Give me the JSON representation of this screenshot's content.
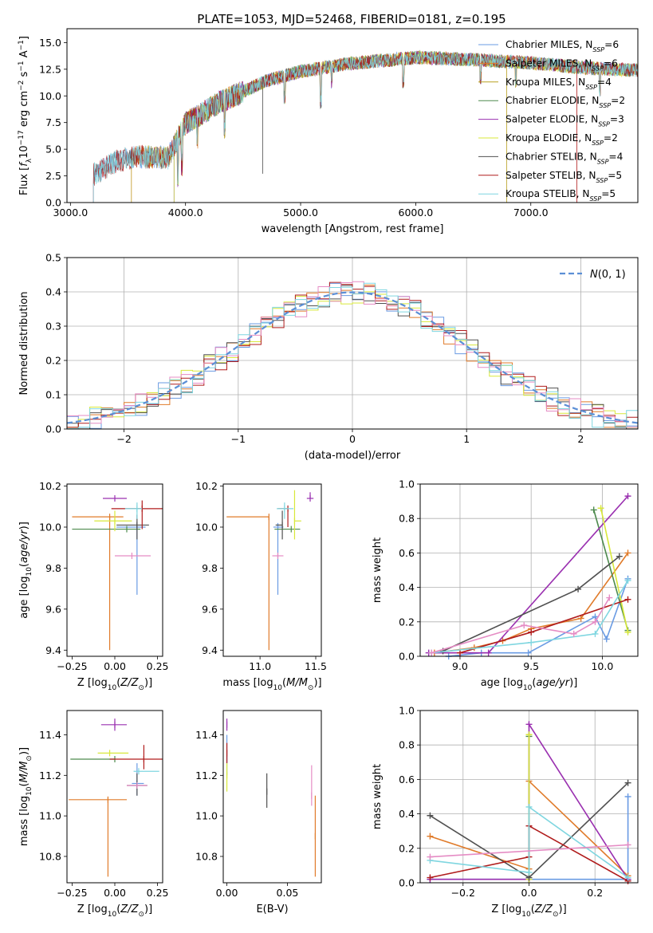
{
  "figure": {
    "title": "PLATE=1053, MJD=52468, FIBERID=0181, z=0.195"
  },
  "chart_data": [
    {
      "id": "spectrum",
      "type": "line",
      "title": "PLATE=1053, MJD=52468, FIBERID=0181, z=0.195",
      "xlabel": "wavelength [Angstrom, rest frame]",
      "ylabel": "Flux [f_λ 10^-17 erg cm^-2 s^-1 A^-1]",
      "xlim": [
        2970,
        7930
      ],
      "ylim": [
        0,
        16.3
      ],
      "xticks": [
        3000,
        4000,
        5000,
        6000,
        7000
      ],
      "yticks": [
        0.0,
        2.5,
        5.0,
        7.5,
        10.0,
        12.5,
        15.0
      ],
      "legend_position": "upper-right",
      "grid": false,
      "continuum": [
        [
          3200,
          2.6
        ],
        [
          3400,
          3.9
        ],
        [
          3600,
          4.3
        ],
        [
          3850,
          4.2
        ],
        [
          4000,
          7.4
        ],
        [
          4300,
          9.4
        ],
        [
          4700,
          11.4
        ],
        [
          5000,
          12.3
        ],
        [
          5400,
          13.0
        ],
        [
          6000,
          13.6
        ],
        [
          6500,
          13.4
        ],
        [
          7000,
          13.1
        ],
        [
          7500,
          12.6
        ],
        [
          7930,
          12.4
        ]
      ],
      "series": [
        {
          "name": "Chabrier MILES, N_SSP=6",
          "color": "#6a9be3",
          "start": 3200
        },
        {
          "name": "Salpeter MILES, N_SSP=6",
          "color": "#e07b2a",
          "start": 3530
        },
        {
          "name": "Kroupa MILES, N_SSP=4",
          "color": "#b8a020",
          "start": 3530
        },
        {
          "name": "Chabrier ELODIE, N_SSP=2",
          "color": "#4d8a4d",
          "start": 3900
        },
        {
          "name": "Salpeter ELODIE, N_SSP=3",
          "color": "#9a30b0",
          "start": 3900
        },
        {
          "name": "Kroupa ELODIE, N_SSP=2",
          "color": "#d8e83a",
          "start": 3900
        },
        {
          "name": "Chabrier STELIB, N_SSP=4",
          "color": "#505050",
          "start": 3200
        },
        {
          "name": "Salpeter STELIB, N_SSP=5",
          "color": "#b01c1c",
          "start": 3200
        },
        {
          "name": "Kroupa STELIB, N_SSP=5",
          "color": "#7fd6e0",
          "start": 3200
        }
      ]
    },
    {
      "id": "residuals",
      "type": "line",
      "xlabel": "(data-model)/error",
      "ylabel": "Normed distribution",
      "xlim": [
        -2.5,
        2.5
      ],
      "ylim": [
        0,
        0.5
      ],
      "xticks": [
        -2,
        -1,
        0,
        1,
        2
      ],
      "yticks": [
        0.0,
        0.1,
        0.2,
        0.3,
        0.4,
        0.5
      ],
      "grid": true,
      "legend": "N(0, 1)",
      "legend_position": "upper-right",
      "bin_width": 0.1
    },
    {
      "id": "age_vs_Z",
      "type": "scatter",
      "xlabel": "Z [log10(Z/Z⊙)]",
      "ylabel": "age  [log10(age/yr)]",
      "xlim": [
        -0.28,
        0.28
      ],
      "ylim": [
        9.37,
        10.21
      ],
      "xticks": [
        -0.25,
        0.0,
        0.25
      ],
      "yticks": [
        9.4,
        9.6,
        9.8,
        10.0,
        10.2
      ],
      "points": [
        {
          "x": 0.13,
          "y": 10.0,
          "xerr": [
            0.12,
            0.05
          ],
          "yerr": [
            0.33,
            0.02
          ],
          "color": "#6a9be3"
        },
        {
          "x": -0.03,
          "y": 10.05,
          "xerr": [
            0.22,
            0.08
          ],
          "yerr": [
            0.65,
            0.0
          ],
          "color": "#e07b2a"
        },
        {
          "x": 0.07,
          "y": 9.99,
          "xerr": [
            0.32,
            0.08
          ],
          "yerr": [
            0.0,
            0.0
          ],
          "color": "#4d8a4d"
        },
        {
          "x": 0.0,
          "y": 10.14,
          "xerr": [
            0.07,
            0.07
          ],
          "yerr": [
            0.0,
            0.0
          ],
          "color": "#9a30b0"
        },
        {
          "x": 0.0,
          "y": 10.03,
          "xerr": [
            0.12,
            0.1
          ],
          "yerr": [
            0.05,
            0.05
          ],
          "color": "#d8e83a"
        },
        {
          "x": 0.13,
          "y": 10.01,
          "xerr": [
            0.12,
            0.07
          ],
          "yerr": [
            0.07,
            0.05
          ],
          "color": "#505050"
        },
        {
          "x": 0.16,
          "y": 10.09,
          "xerr": [
            0.18,
            0.12
          ],
          "yerr": [
            0.1,
            0.04
          ],
          "color": "#b01c1c"
        },
        {
          "x": 0.13,
          "y": 10.09,
          "xerr": [
            0.07,
            0.03
          ],
          "yerr": [
            0.05,
            0.03
          ],
          "color": "#7fd6e0"
        },
        {
          "x": 0.1,
          "y": 9.86,
          "xerr": [
            0.1,
            0.11
          ],
          "yerr": [
            0.0,
            0.0
          ],
          "color": "#e58cc4"
        }
      ]
    },
    {
      "id": "age_vs_mass",
      "type": "scatter",
      "xlabel": "mass [log10(M/M⊙)]",
      "ylabel": "",
      "xlim": [
        10.67,
        11.55
      ],
      "ylim": [
        9.37,
        10.21
      ],
      "xticks": [
        11.0,
        11.5
      ],
      "yticks": [
        9.4,
        9.6,
        9.8,
        10.0,
        10.2
      ],
      "points": [
        {
          "x": 11.16,
          "y": 10.0,
          "xerr": [
            0.04,
            0.05
          ],
          "yerr": [
            0.33,
            0.02
          ],
          "color": "#6a9be3"
        },
        {
          "x": 11.08,
          "y": 10.05,
          "xerr": [
            0.38,
            0.0
          ],
          "yerr": [
            0.65,
            0.0
          ],
          "color": "#e07b2a"
        },
        {
          "x": 11.28,
          "y": 9.99,
          "xerr": [
            0.15,
            0.08
          ],
          "yerr": [
            0.0,
            0.0
          ],
          "color": "#4d8a4d"
        },
        {
          "x": 11.45,
          "y": 10.14,
          "xerr": [
            0.03,
            0.03
          ],
          "yerr": [
            0.0,
            0.03
          ],
          "color": "#9a30b0"
        },
        {
          "x": 11.31,
          "y": 10.03,
          "xerr": [
            0.0,
            0.06
          ],
          "yerr": [
            0.09,
            0.15
          ],
          "color": "#d8e83a"
        },
        {
          "x": 11.2,
          "y": 10.01,
          "xerr": [
            0.06,
            0.0
          ],
          "yerr": [
            0.07,
            0.07
          ],
          "color": "#505050"
        },
        {
          "x": 11.25,
          "y": 10.09,
          "xerr": [
            0.09,
            0.0
          ],
          "yerr": [
            0.09,
            0.0
          ],
          "color": "#b01c1c"
        },
        {
          "x": 11.22,
          "y": 10.09,
          "xerr": [
            0.07,
            0.08
          ],
          "yerr": [
            0.05,
            0.03
          ],
          "color": "#7fd6e0"
        },
        {
          "x": 11.16,
          "y": 9.86,
          "xerr": [
            0.05,
            0.05
          ],
          "yerr": [
            0.0,
            0.0
          ],
          "color": "#e58cc4"
        }
      ]
    },
    {
      "id": "mass_weight_vs_age",
      "type": "line",
      "xlabel": "age  [log10(age/yr)]",
      "ylabel": "mass weight",
      "xlim": [
        8.72,
        10.25
      ],
      "ylim": [
        0.0,
        1.0
      ],
      "xticks": [
        9.0,
        9.5,
        10.0
      ],
      "yticks": [
        0.0,
        0.2,
        0.4,
        0.6,
        0.8,
        1.0
      ],
      "grid": true,
      "series": [
        {
          "color": "#6a9be3",
          "x": [
            8.92,
            9.15,
            9.48,
            9.95,
            10.03,
            10.18
          ],
          "y": [
            0.0,
            0.02,
            0.02,
            0.23,
            0.1,
            0.45
          ]
        },
        {
          "color": "#e07b2a",
          "x": [
            8.82,
            9.1,
            9.3,
            9.5,
            9.85,
            10.18
          ],
          "y": [
            0.02,
            0.05,
            0.09,
            0.16,
            0.22,
            0.6
          ]
        },
        {
          "color": "#4d8a4d",
          "x": [
            9.94,
            10.18
          ],
          "y": [
            0.85,
            0.15
          ]
        },
        {
          "color": "#9a30b0",
          "x": [
            8.78,
            9.2,
            10.18
          ],
          "y": [
            0.02,
            0.02,
            0.93
          ]
        },
        {
          "color": "#d8e83a",
          "x": [
            9.99,
            10.18
          ],
          "y": [
            0.86,
            0.14
          ]
        },
        {
          "color": "#505050",
          "x": [
            8.88,
            9.83,
            10.12
          ],
          "y": [
            0.03,
            0.39,
            0.58
          ]
        },
        {
          "color": "#b01c1c",
          "x": [
            9.0,
            9.5,
            10.18
          ],
          "y": [
            0.02,
            0.14,
            0.33
          ]
        },
        {
          "color": "#7fd6e0",
          "x": [
            8.8,
            9.5,
            9.95,
            10.18
          ],
          "y": [
            0.02,
            0.08,
            0.13,
            0.44
          ]
        },
        {
          "color": "#e58cc4",
          "x": [
            8.8,
            9.45,
            9.8,
            9.95,
            10.05
          ],
          "y": [
            0.02,
            0.18,
            0.13,
            0.2,
            0.34
          ]
        }
      ]
    },
    {
      "id": "mass_vs_Z",
      "type": "scatter",
      "xlabel": "Z [log10(Z/Z⊙)]",
      "ylabel": "mass [log10(M/M⊙)]",
      "xlim": [
        -0.28,
        0.28
      ],
      "ylim": [
        10.67,
        11.52
      ],
      "xticks": [
        -0.25,
        0.0,
        0.25
      ],
      "yticks": [
        10.8,
        11.0,
        11.2,
        11.4
      ],
      "points": [
        {
          "x": 0.13,
          "y": 11.16,
          "xerr": [
            0.03,
            0.04
          ],
          "yerr": [
            0.06,
            0.1
          ],
          "color": "#6a9be3"
        },
        {
          "x": -0.04,
          "y": 11.08,
          "xerr": [
            0.23,
            0.11
          ],
          "yerr": [
            0.38,
            0.01
          ],
          "color": "#e07b2a"
        },
        {
          "x": 0.0,
          "y": 11.28,
          "xerr": [
            0.26,
            0.0
          ],
          "yerr": [
            0.0,
            0.0
          ],
          "color": "#4d8a4d"
        },
        {
          "x": 0.0,
          "y": 11.45,
          "xerr": [
            0.08,
            0.07
          ],
          "yerr": [
            0.03,
            0.03
          ],
          "color": "#9a30b0"
        },
        {
          "x": -0.03,
          "y": 11.31,
          "xerr": [
            0.07,
            0.11
          ],
          "yerr": [
            0.0,
            0.0
          ],
          "color": "#d8e83a"
        },
        {
          "x": 0.13,
          "y": 11.15,
          "xerr": [
            0.06,
            0.06
          ],
          "yerr": [
            0.05,
            0.06
          ],
          "color": "#505050"
        },
        {
          "x": 0.17,
          "y": 11.28,
          "xerr": [
            0.2,
            0.12
          ],
          "yerr": [
            0.05,
            0.07
          ],
          "color": "#b01c1c"
        },
        {
          "x": 0.14,
          "y": 11.22,
          "xerr": [
            0.03,
            0.12
          ],
          "yerr": [
            0.0,
            0.0
          ],
          "color": "#7fd6e0"
        },
        {
          "x": 0.13,
          "y": 11.15,
          "xerr": [
            0.06,
            0.06
          ],
          "yerr": [
            0.0,
            0.0
          ],
          "color": "#e58cc4"
        }
      ]
    },
    {
      "id": "mass_vs_EBV",
      "type": "scatter",
      "xlabel": "E(B-V)",
      "ylabel": "",
      "xlim": [
        -0.003,
        0.078
      ],
      "ylim": [
        10.67,
        11.52
      ],
      "xticks": [
        0.0,
        0.05
      ],
      "yticks": [
        10.8,
        11.0,
        11.2,
        11.4
      ],
      "points": [
        {
          "x": 0.0,
          "y": 11.28,
          "xerr": [
            0.0,
            0.0
          ],
          "yerr": [
            0.08,
            0.12
          ],
          "color": "#6a9be3"
        },
        {
          "x": 0.0,
          "y": 11.45,
          "xerr": [
            0.0,
            0.0
          ],
          "yerr": [
            0.03,
            0.03
          ],
          "color": "#9a30b0"
        },
        {
          "x": 0.0,
          "y": 11.31,
          "xerr": [
            0.0,
            0.0
          ],
          "yerr": [
            0.05,
            0.05
          ],
          "color": "#b01c1c"
        },
        {
          "x": 0.0,
          "y": 11.2,
          "xerr": [
            0.0,
            0.0
          ],
          "yerr": [
            0.08,
            0.06
          ],
          "color": "#d8e83a"
        },
        {
          "x": 0.033,
          "y": 11.12,
          "xerr": [
            0.0,
            0.0
          ],
          "yerr": [
            0.08,
            0.09
          ],
          "color": "#505050"
        },
        {
          "x": 0.073,
          "y": 10.9,
          "xerr": [
            0.0,
            0.0
          ],
          "yerr": [
            0.2,
            0.2
          ],
          "color": "#e07b2a"
        },
        {
          "x": 0.07,
          "y": 11.1,
          "xerr": [
            0.0,
            0.0
          ],
          "yerr": [
            0.05,
            0.15
          ],
          "color": "#e58cc4"
        }
      ]
    },
    {
      "id": "mass_weight_vs_Z",
      "type": "line",
      "xlabel": "Z [log10(Z/Z⊙)]",
      "ylabel": "mass weight",
      "xlim": [
        -0.33,
        0.33
      ],
      "ylim": [
        0.0,
        1.0
      ],
      "xticks": [
        -0.2,
        0.0,
        0.2
      ],
      "yticks": [
        0.0,
        0.2,
        0.4,
        0.6,
        0.8,
        1.0
      ],
      "grid": true,
      "series": [
        {
          "color": "#6a9be3",
          "x": [
            -0.3,
            0.0,
            0.3,
            0.3
          ],
          "y": [
            0.02,
            0.02,
            0.02,
            0.5
          ]
        },
        {
          "color": "#e07b2a",
          "x": [
            -0.3,
            0.0,
            0.0,
            0.3
          ],
          "y": [
            0.27,
            0.08,
            0.59,
            0.04
          ]
        },
        {
          "color": "#4d8a4d",
          "x": [
            0.0,
            0.0
          ],
          "y": [
            0.02,
            0.85
          ]
        },
        {
          "color": "#9a30b0",
          "x": [
            -0.3,
            0.0,
            0.0,
            0.3
          ],
          "y": [
            0.02,
            0.02,
            0.92,
            0.02
          ]
        },
        {
          "color": "#d8e83a",
          "x": [
            0.0,
            0.0
          ],
          "y": [
            0.02,
            0.86
          ]
        },
        {
          "color": "#505050",
          "x": [
            -0.3,
            0.0,
            0.3
          ],
          "y": [
            0.39,
            0.03,
            0.58
          ]
        },
        {
          "color": "#b01c1c",
          "x": [
            -0.3,
            0.0,
            0.0,
            0.3
          ],
          "y": [
            0.03,
            0.15,
            0.33,
            0.01
          ]
        },
        {
          "color": "#7fd6e0",
          "x": [
            -0.3,
            0.0,
            0.0,
            0.3
          ],
          "y": [
            0.13,
            0.06,
            0.44,
            0.03
          ]
        },
        {
          "color": "#e58cc4",
          "x": [
            -0.3,
            0.3
          ],
          "y": [
            0.15,
            0.22
          ]
        }
      ]
    }
  ]
}
